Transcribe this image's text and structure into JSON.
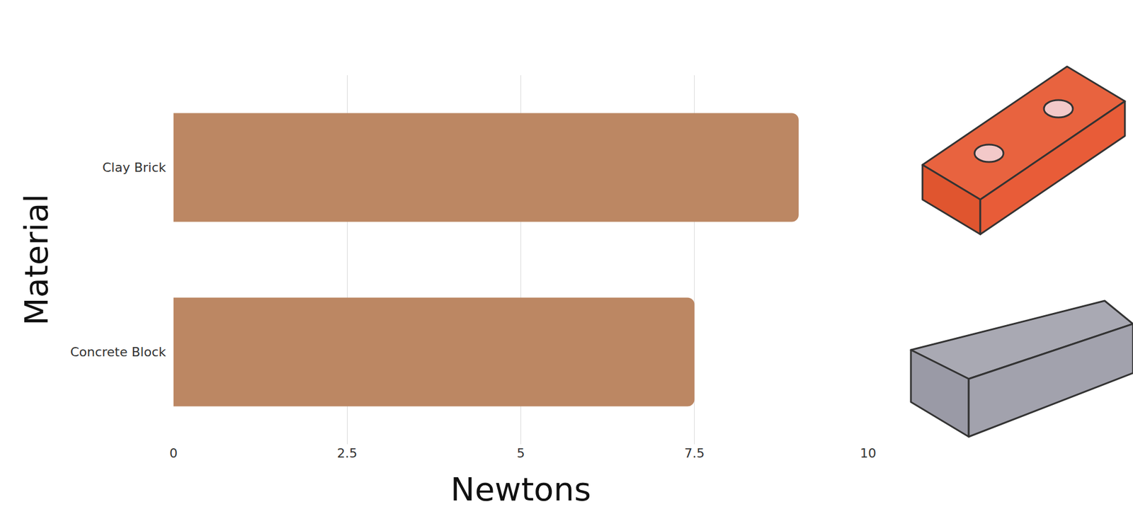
{
  "chart_data": {
    "type": "bar",
    "orientation": "horizontal",
    "categories": [
      "Clay Brick",
      "Concrete Block"
    ],
    "values": [
      9,
      7.5
    ],
    "color": "#bc8763",
    "x_label": "Newtons",
    "y_label": "Material",
    "xlim": [
      0,
      10
    ],
    "xticks": [
      0,
      2.5,
      5,
      7.5,
      10
    ],
    "grid": true
  }
}
